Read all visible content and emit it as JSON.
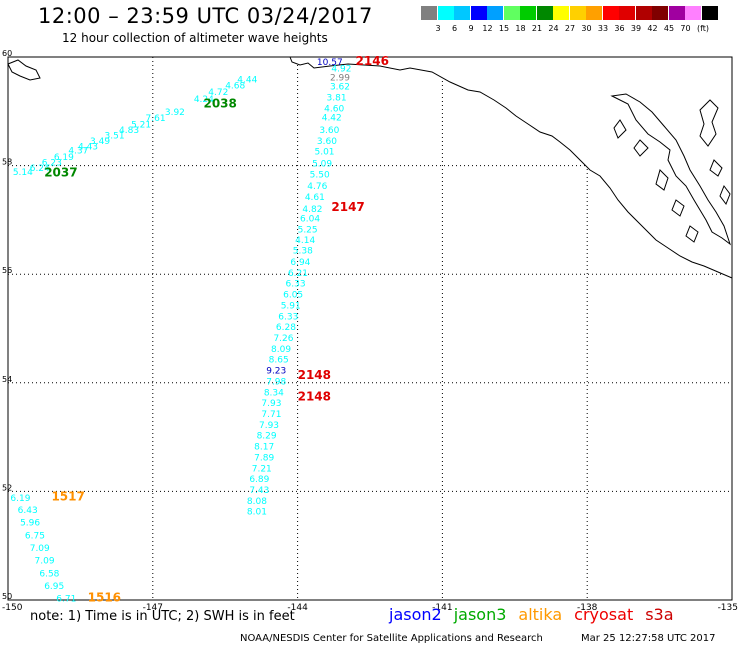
{
  "title": "12:00 – 23:59 UTC 03/24/2017",
  "subtitle": "12 hour collection of altimeter wave heights",
  "legend": {
    "unit": "(ft)",
    "colors": [
      "#808080",
      "#00ffff",
      "#00c8ff",
      "#0000ff",
      "#00a0ff",
      "#60ff60",
      "#00cc00",
      "#008800",
      "#ffff00",
      "#ffd000",
      "#ffa000",
      "#ff0000",
      "#e00000",
      "#b00000",
      "#800000",
      "#a000a0",
      "#ff80ff",
      "#000000"
    ],
    "labels": [
      "3",
      "6",
      "9",
      "12",
      "15",
      "18",
      "21",
      "24",
      "27",
      "30",
      "33",
      "36",
      "39",
      "42",
      "45",
      "70"
    ]
  },
  "axes": {
    "lat_labels": [
      "60",
      "58",
      "56",
      "54",
      "52",
      "50"
    ],
    "lon_labels": [
      "-150",
      "-147",
      "-144",
      "-141",
      "-138",
      "-135"
    ]
  },
  "tracks": [
    {
      "satellite": "jason3",
      "time": "2037",
      "color": "#00ffff",
      "points": [
        {
          "lon": -149.9,
          "lat": 57.83,
          "v": "5.14"
        },
        {
          "lon": -149.55,
          "lat": 57.9,
          "v": "6.24"
        },
        {
          "lon": -149.3,
          "lat": 58.0,
          "v": "6.23"
        },
        {
          "lon": -149.05,
          "lat": 58.1,
          "v": "6.19"
        },
        {
          "lon": -148.75,
          "lat": 58.22,
          "v": "4.37"
        },
        {
          "lon": -148.55,
          "lat": 58.3,
          "v": "4.43"
        },
        {
          "lon": -148.3,
          "lat": 58.4,
          "v": "3.49"
        },
        {
          "lon": -148.0,
          "lat": 58.5,
          "v": "3.51"
        },
        {
          "lon": -147.7,
          "lat": 58.6,
          "v": "4.83"
        },
        {
          "lon": -147.45,
          "lat": 58.7,
          "v": "5.21"
        },
        {
          "lon": -147.15,
          "lat": 58.82,
          "v": "7.61"
        },
        {
          "lon": -146.75,
          "lat": 58.93,
          "v": "3.92"
        },
        {
          "lon": -146.15,
          "lat": 59.17,
          "v": "4.24"
        },
        {
          "lon": -145.85,
          "lat": 59.3,
          "v": "4.72"
        },
        {
          "lon": -145.5,
          "lat": 59.42,
          "v": "4.68"
        },
        {
          "lon": -145.25,
          "lat": 59.53,
          "v": "4.44"
        }
      ]
    },
    {
      "satellite": "cryosat",
      "time": "2146",
      "color": "#00ffff",
      "points": [
        {
          "lon": -143.6,
          "lat": 59.85,
          "v": "10.57",
          "c": "#0000c0"
        },
        {
          "lon": -143.3,
          "lat": 59.73,
          "v": "4.92"
        },
        {
          "lon": -143.33,
          "lat": 59.57,
          "v": "2.99",
          "c": "#808080"
        },
        {
          "lon": -143.33,
          "lat": 59.4,
          "v": "3.62"
        },
        {
          "lon": -143.4,
          "lat": 59.2,
          "v": "3.81"
        },
        {
          "lon": -143.45,
          "lat": 59.0,
          "v": "4.60"
        },
        {
          "lon": -143.5,
          "lat": 58.83,
          "v": "4.42"
        },
        {
          "lon": -143.55,
          "lat": 58.6,
          "v": "3.60"
        },
        {
          "lon": -143.6,
          "lat": 58.4,
          "v": "3.60"
        },
        {
          "lon": -143.65,
          "lat": 58.2,
          "v": "5.01"
        },
        {
          "lon": -143.7,
          "lat": 57.98,
          "v": "5.09"
        },
        {
          "lon": -143.75,
          "lat": 57.78,
          "v": "5.50"
        },
        {
          "lon": -143.8,
          "lat": 57.57,
          "v": "4.76"
        },
        {
          "lon": -143.85,
          "lat": 57.37,
          "v": "4.61"
        },
        {
          "lon": -143.9,
          "lat": 57.15,
          "v": "4.82"
        }
      ]
    },
    {
      "satellite": "cryosat",
      "time": "2147",
      "color": "#00ffff",
      "points": [
        {
          "lon": -143.95,
          "lat": 56.97,
          "v": "6.04"
        },
        {
          "lon": -144.0,
          "lat": 56.77,
          "v": "5.25"
        },
        {
          "lon": -144.05,
          "lat": 56.57,
          "v": "4.14"
        },
        {
          "lon": -144.1,
          "lat": 56.38,
          "v": "5.38"
        },
        {
          "lon": -144.15,
          "lat": 56.17,
          "v": "6.94"
        },
        {
          "lon": -144.2,
          "lat": 55.97,
          "v": "6.21"
        },
        {
          "lon": -144.25,
          "lat": 55.77,
          "v": "6.33"
        },
        {
          "lon": -144.3,
          "lat": 55.57,
          "v": "6.05"
        },
        {
          "lon": -144.35,
          "lat": 55.37,
          "v": "5.91"
        },
        {
          "lon": -144.4,
          "lat": 55.17,
          "v": "6.33"
        },
        {
          "lon": -144.45,
          "lat": 54.97,
          "v": "6.28"
        },
        {
          "lon": -144.5,
          "lat": 54.77,
          "v": "7.26"
        },
        {
          "lon": -144.55,
          "lat": 54.57,
          "v": "8.09"
        },
        {
          "lon": -144.6,
          "lat": 54.37,
          "v": "8.65"
        },
        {
          "lon": -144.65,
          "lat": 54.17,
          "v": "9.23",
          "c": "#0000c0"
        }
      ]
    },
    {
      "satellite": "cryosat",
      "time": "2148",
      "color": "#00ffff",
      "points": [
        {
          "lon": -144.65,
          "lat": 53.97,
          "v": "7.98"
        },
        {
          "lon": -144.7,
          "lat": 53.77,
          "v": "8.34"
        },
        {
          "lon": -144.75,
          "lat": 53.57,
          "v": "7.93"
        },
        {
          "lon": -144.75,
          "lat": 53.37,
          "v": "7.71"
        },
        {
          "lon": -144.8,
          "lat": 53.17,
          "v": "7.93"
        },
        {
          "lon": -144.85,
          "lat": 52.97,
          "v": "8.29"
        },
        {
          "lon": -144.9,
          "lat": 52.77,
          "v": "8.17"
        },
        {
          "lon": -144.9,
          "lat": 52.57,
          "v": "7.89"
        },
        {
          "lon": -144.95,
          "lat": 52.37,
          "v": "7.21"
        },
        {
          "lon": -145.0,
          "lat": 52.17,
          "v": "6.89"
        },
        {
          "lon": -145.0,
          "lat": 51.97,
          "v": "7.43"
        },
        {
          "lon": -145.05,
          "lat": 51.77,
          "v": "8.08"
        },
        {
          "lon": -145.05,
          "lat": 51.57,
          "v": "8.01"
        }
      ]
    },
    {
      "satellite": "altika",
      "time": "1517",
      "color": "#00ffff",
      "points": [
        {
          "lon": -149.95,
          "lat": 51.82,
          "v": "6.19"
        },
        {
          "lon": -149.8,
          "lat": 51.6,
          "v": "6.43"
        },
        {
          "lon": -149.75,
          "lat": 51.37,
          "v": "5.96"
        },
        {
          "lon": -149.65,
          "lat": 51.13,
          "v": "6.75"
        },
        {
          "lon": -149.55,
          "lat": 50.9,
          "v": "7.09"
        },
        {
          "lon": -149.45,
          "lat": 50.67,
          "v": "7.09"
        },
        {
          "lon": -149.35,
          "lat": 50.43,
          "v": "6.58"
        },
        {
          "lon": -149.25,
          "lat": 50.2,
          "v": "6.95"
        },
        {
          "lon": -149.0,
          "lat": 49.97,
          "v": "6.71"
        }
      ]
    }
  ],
  "time_labels": [
    {
      "text": "2146",
      "color": "#e00000",
      "lon": -142.8,
      "lat": 59.85
    },
    {
      "text": "2038",
      "color": "#008800",
      "lon": -145.95,
      "lat": 59.07
    },
    {
      "text": "2037",
      "color": "#008800",
      "lon": -149.25,
      "lat": 57.8
    },
    {
      "text": "2147",
      "color": "#e00000",
      "lon": -143.3,
      "lat": 57.16
    },
    {
      "text": "2148",
      "color": "#e00000",
      "lon": -144.0,
      "lat": 54.07
    },
    {
      "text": "2148",
      "color": "#e00000",
      "lon": -144.0,
      "lat": 53.67
    },
    {
      "text": "1517",
      "color": "#ff9000",
      "lon": -149.1,
      "lat": 51.83
    },
    {
      "text": "1516",
      "color": "#ff9000",
      "lon": -148.35,
      "lat": 49.97
    }
  ],
  "note": "note: 1) Time is in UTC; 2) SWH is in feet",
  "satellites": [
    {
      "name": "jason2",
      "color": "#0000ff"
    },
    {
      "name": "jason3",
      "color": "#00aa00"
    },
    {
      "name": "altika",
      "color": "#ff9900"
    },
    {
      "name": "cryosat",
      "color": "#ee0000"
    },
    {
      "name": "s3a",
      "color": "#cc0000"
    }
  ],
  "footer_left": "NOAA/NESDIS Center for Satellite Applications and Research",
  "footer_right": "Mar 25 12:27:58 UTC 2017"
}
